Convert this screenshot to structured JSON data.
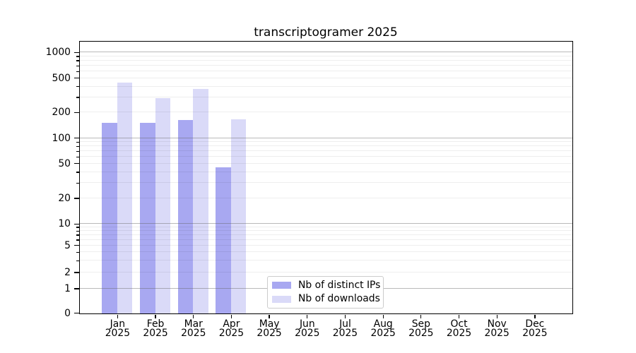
{
  "chart_data": {
    "type": "bar",
    "title": "transcriptogramer 2025",
    "year_label": "2025",
    "categories": [
      "Jan",
      "Feb",
      "Mar",
      "Apr",
      "May",
      "Jun",
      "Jul",
      "Aug",
      "Sep",
      "Oct",
      "Nov",
      "Dec"
    ],
    "series": [
      {
        "name": "Nb of distinct IPs",
        "color": "#a8a8f1",
        "values": [
          150,
          150,
          160,
          45,
          null,
          null,
          null,
          null,
          null,
          null,
          null,
          null
        ]
      },
      {
        "name": "Nb of downloads",
        "color": "#dadaf8",
        "values": [
          440,
          290,
          370,
          165,
          null,
          null,
          null,
          null,
          null,
          null,
          null,
          null
        ]
      }
    ],
    "xlabel": "",
    "ylabel": "",
    "y_scale": "log-with-zero",
    "y_ticks": [
      0,
      1,
      2,
      5,
      10,
      20,
      50,
      100,
      200,
      500,
      1000
    ],
    "ylim": [
      0,
      1000
    ],
    "grid": "horizontal",
    "legend_position": "bottom-center-inside"
  }
}
